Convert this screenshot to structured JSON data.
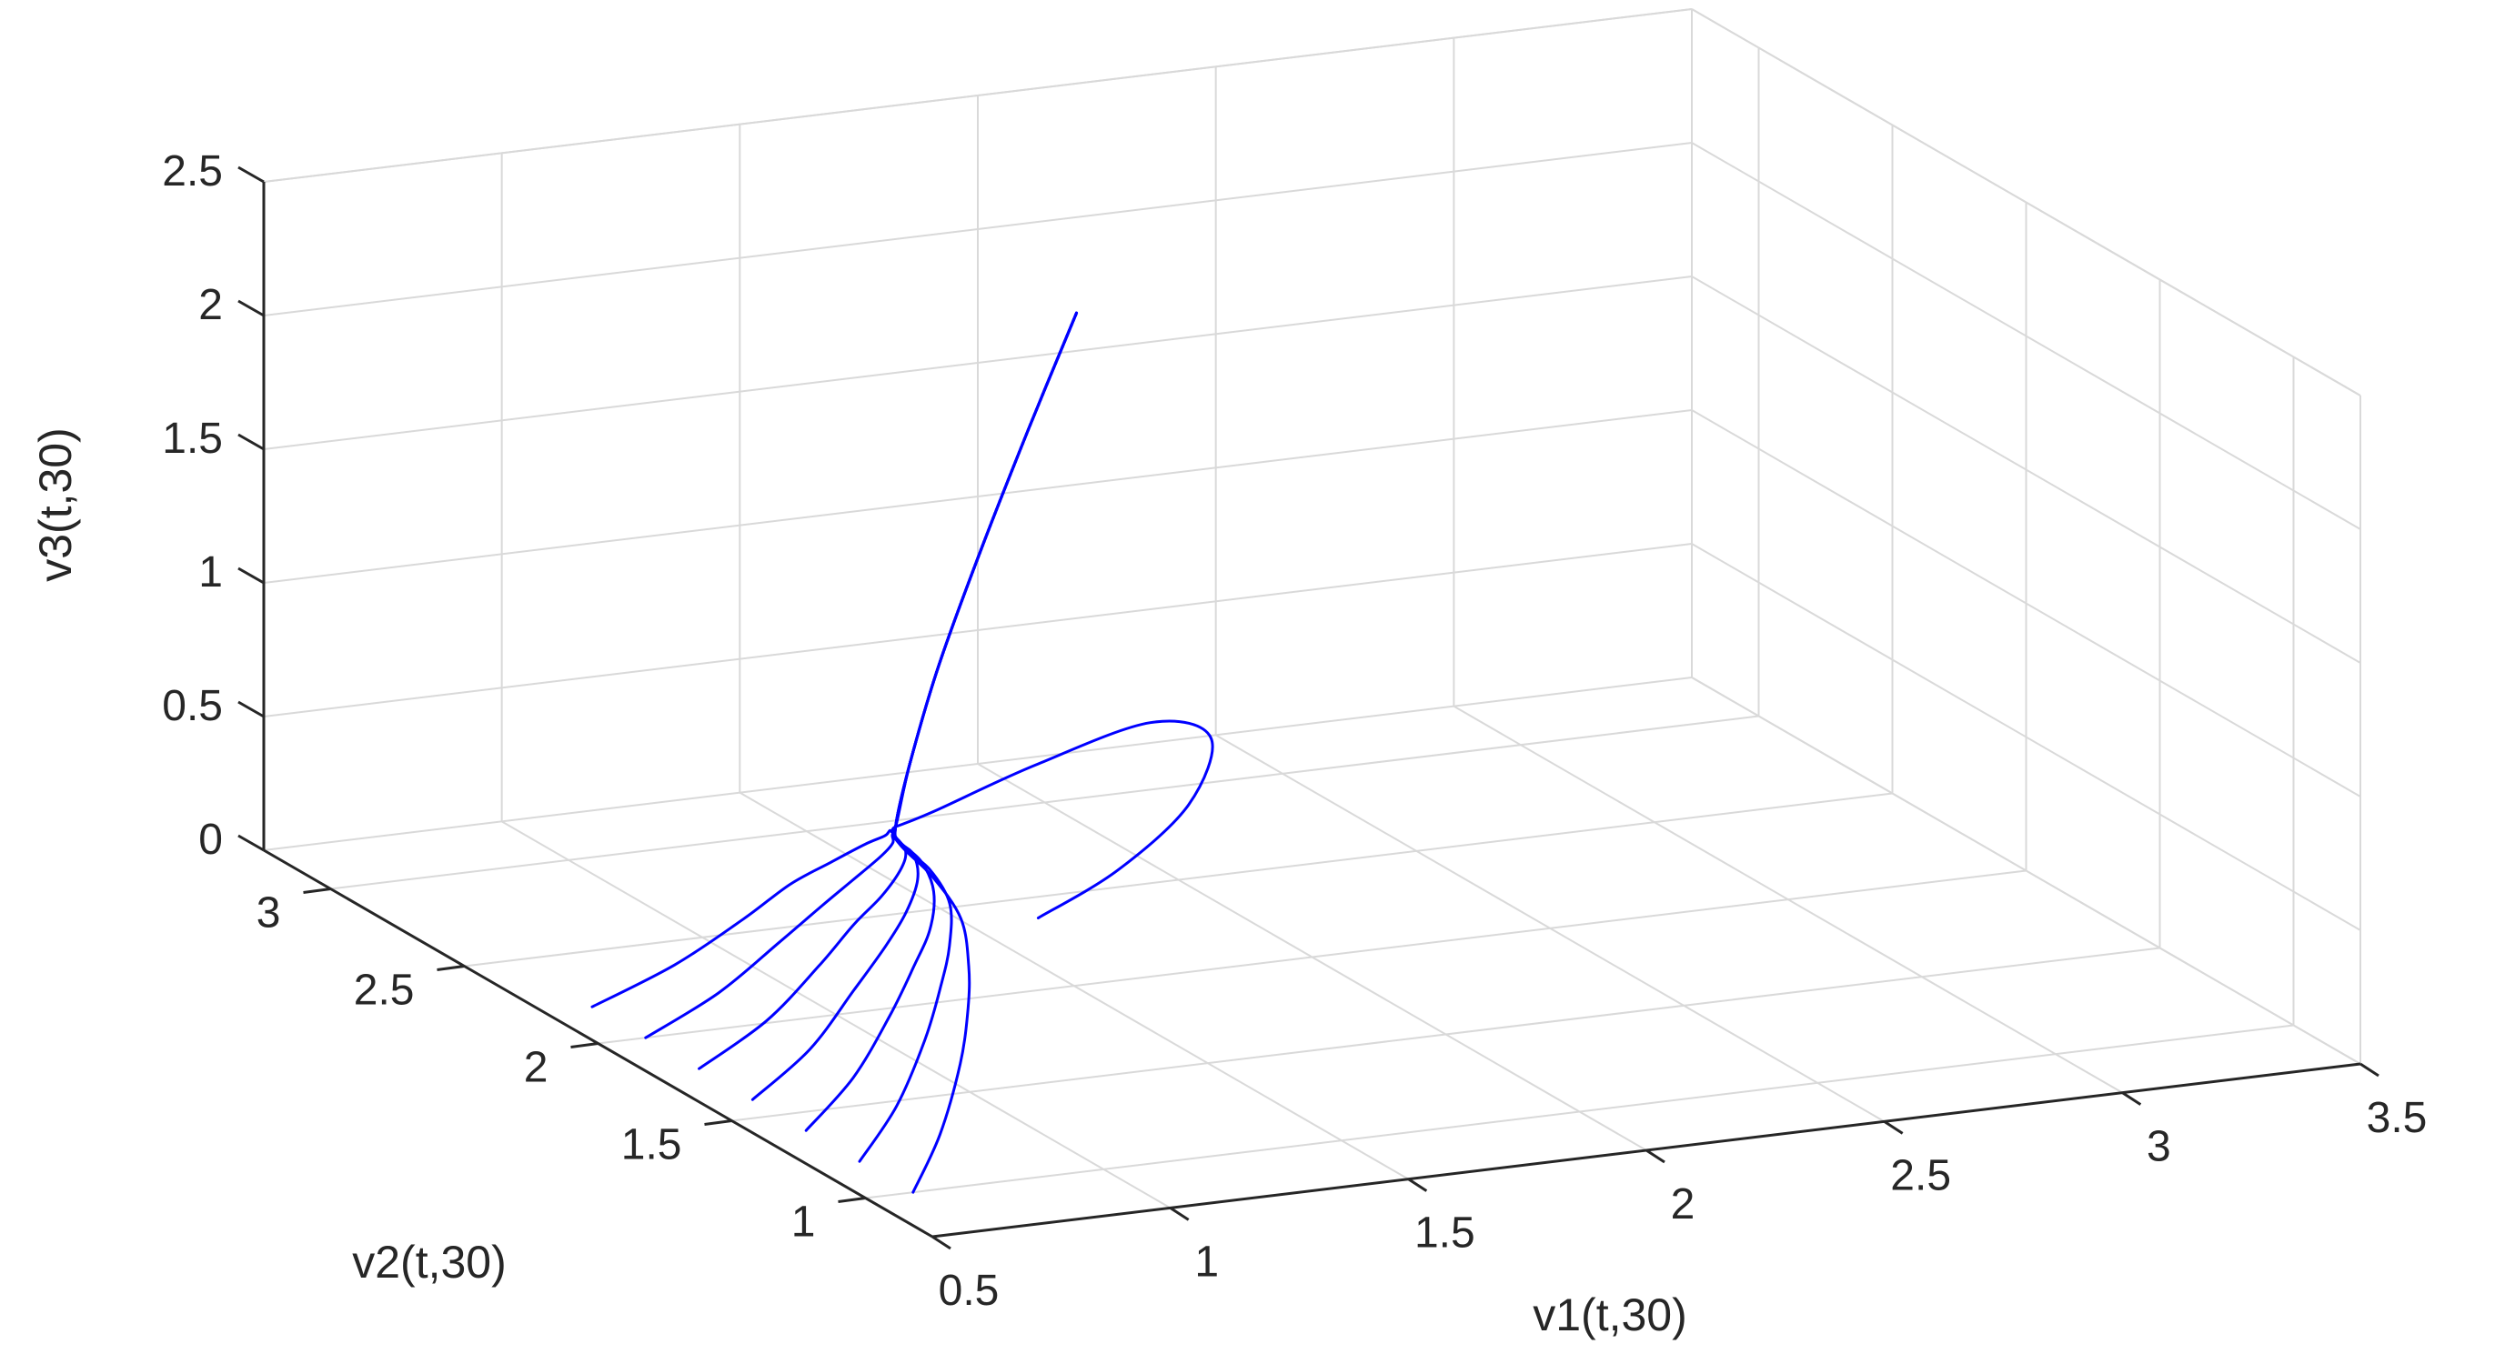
{
  "chart_data": {
    "type": "line3d",
    "title": "",
    "xlabel": "v1(t,30)",
    "ylabel": "v2(t,30)",
    "zlabel": "v3(t,30)",
    "xlim": [
      0.5,
      3.5
    ],
    "ylim": [
      0.75,
      3.25
    ],
    "zlim": [
      0,
      2.5
    ],
    "xticks": [
      0.5,
      1,
      1.5,
      2,
      2.5,
      3,
      3.5
    ],
    "yticks": [
      1,
      1.5,
      2,
      2.5,
      3
    ],
    "zticks": [
      0,
      0.5,
      1,
      1.5,
      2,
      2.5
    ],
    "xtick_labels": [
      "0.5",
      "1",
      "1.5",
      "2",
      "2.5",
      "3",
      "3.5"
    ],
    "ytick_labels": [
      "1",
      "1.5",
      "2",
      "2.5",
      "3"
    ],
    "ztick_labels": [
      "0",
      "0.5",
      "1",
      "1.5",
      "2",
      "2.5"
    ],
    "grid": true,
    "line_color": "#0000ff",
    "series": [
      {
        "x": [
          0.6,
          0.78,
          0.98,
          1.12,
          1.2,
          1.24,
          1.22,
          1.18,
          1.17,
          1.2,
          1.26,
          1.35,
          1.45,
          1.55
        ],
        "y": [
          1.0,
          1.22,
          1.5,
          1.72,
          1.86,
          1.96,
          2.03,
          2.08,
          2.08,
          2.08,
          2.08,
          2.08,
          2.08,
          2.08
        ],
        "z": [
          0.0,
          0.05,
          0.11,
          0.16,
          0.22,
          0.33,
          0.45,
          0.55,
          0.62,
          0.85,
          1.2,
          1.62,
          2.05,
          2.46
        ]
      },
      {
        "x": [
          0.6,
          0.79,
          0.99,
          1.13,
          1.21,
          1.25,
          1.23,
          1.18,
          1.17,
          1.2,
          1.26,
          1.35,
          1.45,
          1.55
        ],
        "y": [
          1.2,
          1.4,
          1.65,
          1.84,
          1.95,
          2.02,
          2.06,
          2.08,
          2.08,
          2.08,
          2.08,
          2.08,
          2.08,
          2.08
        ],
        "z": [
          0.0,
          0.05,
          0.11,
          0.17,
          0.24,
          0.35,
          0.46,
          0.55,
          0.62,
          0.85,
          1.2,
          1.62,
          2.05,
          2.46
        ]
      },
      {
        "x": [
          0.6,
          0.8,
          1.0,
          1.14,
          1.22,
          1.25,
          1.23,
          1.18,
          1.17,
          1.2,
          1.26,
          1.35,
          1.45,
          1.55
        ],
        "y": [
          1.4,
          1.58,
          1.8,
          1.96,
          2.04,
          2.08,
          2.09,
          2.08,
          2.08,
          2.08,
          2.08,
          2.08,
          2.08,
          2.08
        ],
        "z": [
          0.0,
          0.05,
          0.11,
          0.17,
          0.25,
          0.36,
          0.47,
          0.56,
          0.62,
          0.85,
          1.2,
          1.62,
          2.05,
          2.46
        ]
      },
      {
        "x": [
          0.6,
          0.81,
          1.01,
          1.15,
          1.22,
          1.25,
          1.23,
          1.18,
          1.17,
          1.2,
          1.26,
          1.35,
          1.45,
          1.55
        ],
        "y": [
          1.6,
          1.76,
          1.95,
          2.08,
          2.13,
          2.14,
          2.12,
          2.09,
          2.08,
          2.08,
          2.08,
          2.08,
          2.08,
          2.08
        ],
        "z": [
          0.0,
          0.05,
          0.12,
          0.18,
          0.26,
          0.37,
          0.48,
          0.56,
          0.62,
          0.85,
          1.2,
          1.62,
          2.05,
          2.46
        ]
      },
      {
        "x": [
          0.6,
          0.82,
          1.02,
          1.15,
          1.22,
          1.25,
          1.23,
          1.18,
          1.17,
          1.2,
          1.26,
          1.35,
          1.45,
          1.55
        ],
        "y": [
          1.8,
          1.94,
          2.1,
          2.2,
          2.22,
          2.2,
          2.15,
          2.1,
          2.08,
          2.08,
          2.08,
          2.08,
          2.08,
          2.08
        ],
        "z": [
          0.0,
          0.05,
          0.12,
          0.19,
          0.27,
          0.38,
          0.48,
          0.57,
          0.62,
          0.85,
          1.2,
          1.62,
          2.05,
          2.46
        ]
      },
      {
        "x": [
          0.6,
          0.82,
          1.02,
          1.15,
          1.21,
          1.24,
          1.22,
          1.18,
          1.17,
          1.2,
          1.26,
          1.35,
          1.45,
          1.55
        ],
        "y": [
          2.0,
          2.12,
          2.25,
          2.32,
          2.31,
          2.26,
          2.18,
          2.11,
          2.08,
          2.08,
          2.08,
          2.08,
          2.08,
          2.08
        ],
        "z": [
          0.0,
          0.05,
          0.12,
          0.19,
          0.28,
          0.39,
          0.49,
          0.57,
          0.62,
          0.85,
          1.2,
          1.62,
          2.05,
          2.46
        ]
      },
      {
        "x": [
          0.6,
          0.83,
          1.03,
          1.15,
          1.21,
          1.24,
          1.22,
          1.18,
          1.17,
          1.2,
          1.26,
          1.35,
          1.45,
          1.55
        ],
        "y": [
          2.2,
          2.3,
          2.4,
          2.44,
          2.4,
          2.32,
          2.21,
          2.12,
          2.08,
          2.08,
          2.08,
          2.08,
          2.08,
          2.08
        ],
        "z": [
          0.0,
          0.05,
          0.12,
          0.2,
          0.29,
          0.4,
          0.5,
          0.58,
          0.62,
          0.85,
          1.2,
          1.62,
          2.05,
          2.46
        ]
      },
      {
        "x": [
          1.2,
          1.4,
          1.6,
          1.72,
          1.66,
          1.45,
          1.25,
          1.17,
          1.17,
          1.2,
          1.26,
          1.35,
          1.45,
          1.55
        ],
        "y": [
          1.6,
          1.66,
          1.75,
          1.88,
          2.0,
          2.06,
          2.08,
          2.08,
          2.08,
          2.08,
          2.08,
          2.08,
          2.08,
          2.08
        ],
        "z": [
          0.55,
          0.65,
          0.8,
          0.95,
          0.95,
          0.8,
          0.66,
          0.62,
          0.62,
          0.85,
          1.2,
          1.62,
          2.05,
          2.46
        ]
      }
    ]
  }
}
